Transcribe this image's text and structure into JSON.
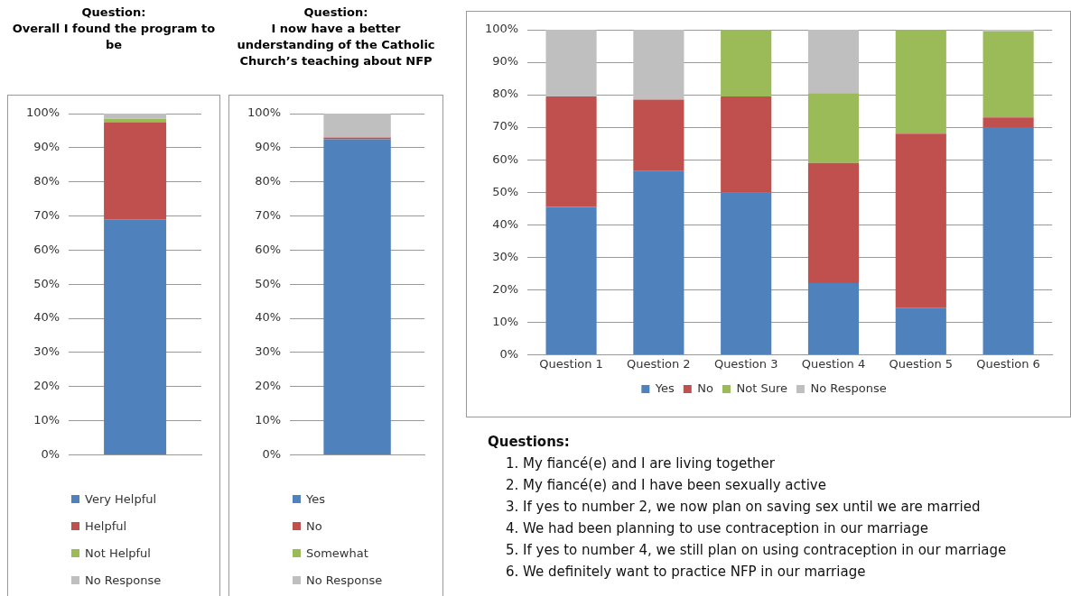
{
  "chart_data": [
    {
      "type": "bar",
      "title": "Question:\nOverall I found the program to be",
      "stacked": true,
      "categories": [
        null
      ],
      "legend": "bottom",
      "grid": "y",
      "ylim": [
        0,
        100
      ],
      "yticks": [
        {
          "value": 0,
          "label": "0%"
        },
        {
          "value": 10,
          "label": "10%"
        },
        {
          "value": 20,
          "label": "20%"
        },
        {
          "value": 30,
          "label": "30%"
        },
        {
          "value": 40,
          "label": "40%"
        },
        {
          "value": 50,
          "label": "50%"
        },
        {
          "value": 60,
          "label": "60%"
        },
        {
          "value": 70,
          "label": "70%"
        },
        {
          "value": 80,
          "label": "80%"
        },
        {
          "value": 90,
          "label": "90%"
        },
        {
          "value": 100,
          "label": "100%"
        }
      ],
      "series": [
        {
          "name": "Very Helpful",
          "color": "#4f81bd",
          "values": [
            69
          ]
        },
        {
          "name": "Helpful",
          "color": "#c0504d",
          "values": [
            28.5
          ]
        },
        {
          "name": "Not Helpful",
          "color": "#9bbb59",
          "values": [
            1
          ]
        },
        {
          "name": "No Response",
          "color": "#bfbfbf",
          "values": [
            1.5
          ]
        }
      ]
    },
    {
      "type": "bar",
      "title": "Question:\nI now have a better\nunderstanding of the Catholic\nChurch’s teaching about NFP",
      "stacked": true,
      "categories": [
        null
      ],
      "legend": "bottom",
      "grid": "y",
      "ylim": [
        0,
        100
      ],
      "yticks": [
        {
          "value": 0,
          "label": "0%"
        },
        {
          "value": 10,
          "label": "10%"
        },
        {
          "value": 20,
          "label": "20%"
        },
        {
          "value": 30,
          "label": "30%"
        },
        {
          "value": 40,
          "label": "40%"
        },
        {
          "value": 50,
          "label": "50%"
        },
        {
          "value": 60,
          "label": "60%"
        },
        {
          "value": 70,
          "label": "70%"
        },
        {
          "value": 80,
          "label": "80%"
        },
        {
          "value": 90,
          "label": "90%"
        },
        {
          "value": 100,
          "label": "100%"
        }
      ],
      "series": [
        {
          "name": "Yes",
          "color": "#4f81bd",
          "values": [
            92.5
          ]
        },
        {
          "name": "No",
          "color": "#c0504d",
          "values": [
            0.5
          ]
        },
        {
          "name": "Somewhat",
          "color": "#9bbb59",
          "values": [
            0
          ]
        },
        {
          "name": "No Response",
          "color": "#bfbfbf",
          "values": [
            7
          ]
        }
      ]
    },
    {
      "type": "bar",
      "stacked": true,
      "categories": [
        "Question 1",
        "Question 2",
        "Question 3",
        "Question 4",
        "Question 5",
        "Question 6"
      ],
      "legend": "bottom",
      "grid": "y",
      "ylim": [
        0,
        100
      ],
      "yticks": [
        {
          "value": 0,
          "label": "0%"
        },
        {
          "value": 10,
          "label": "10%"
        },
        {
          "value": 20,
          "label": "20%"
        },
        {
          "value": 30,
          "label": "30%"
        },
        {
          "value": 40,
          "label": "40%"
        },
        {
          "value": 50,
          "label": "50%"
        },
        {
          "value": 60,
          "label": "60%"
        },
        {
          "value": 70,
          "label": "70%"
        },
        {
          "value": 80,
          "label": "80%"
        },
        {
          "value": 90,
          "label": "90%"
        },
        {
          "value": 100,
          "label": "100%"
        }
      ],
      "series": [
        {
          "name": "Yes",
          "color": "#4f81bd",
          "values": [
            45.5,
            56.5,
            50,
            22,
            14.5,
            70
          ]
        },
        {
          "name": "No",
          "color": "#c0504d",
          "values": [
            34,
            22,
            29.5,
            37,
            53.5,
            3
          ]
        },
        {
          "name": "Not Sure",
          "color": "#9bbb59",
          "values": [
            0,
            0,
            20.5,
            21.5,
            32,
            26.5
          ]
        },
        {
          "name": "No Response",
          "color": "#bfbfbf",
          "values": [
            20.5,
            21.5,
            0,
            19.5,
            0,
            0.5
          ]
        }
      ],
      "annotations": [
        "Questions:",
        "1. My fiancé(e) and I are living together",
        "2. My fiancé(e) and I have been sexually active",
        "3. If yes to number 2, we now plan on saving sex until we are married",
        "4. We had been planning to use contraception in our marriage",
        "5. If yes to number 4, we still plan on using contraception in our marriage",
        "6. We definitely want to practice NFP in our marriage"
      ]
    }
  ]
}
